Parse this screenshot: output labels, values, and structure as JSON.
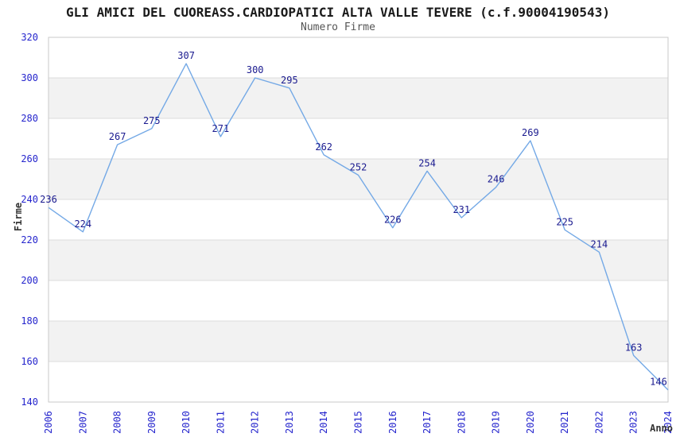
{
  "chart_data": {
    "type": "line",
    "title": "GLI AMICI DEL CUOREASS.CARDIOPATICI ALTA VALLE TEVERE (c.f.90004190543)",
    "subtitle": "Numero Firme",
    "xlabel": "Anno",
    "ylabel": "Firme",
    "categories": [
      "2006",
      "2007",
      "2008",
      "2009",
      "2010",
      "2011",
      "2012",
      "2013",
      "2014",
      "2015",
      "2016",
      "2017",
      "2018",
      "2019",
      "2020",
      "2021",
      "2022",
      "2023",
      "2024"
    ],
    "values": [
      236,
      224,
      267,
      275,
      307,
      271,
      300,
      295,
      262,
      252,
      226,
      254,
      231,
      246,
      269,
      225,
      214,
      163,
      146
    ],
    "ylim": [
      140,
      320
    ],
    "ytick_step": 20,
    "grid": true,
    "alternating_bands": true,
    "legend_position": "none",
    "colors": {
      "line": "#74a9e6",
      "data_label": "#1a1a8f",
      "tick_label": "#2525cd",
      "axis_title": "#333333",
      "band_gray": "#f2f2f2",
      "gridline": "#dcdcdc",
      "plot_border": "#c9c9c9",
      "title": "#1a1a1a",
      "subtitle": "#555555"
    }
  }
}
